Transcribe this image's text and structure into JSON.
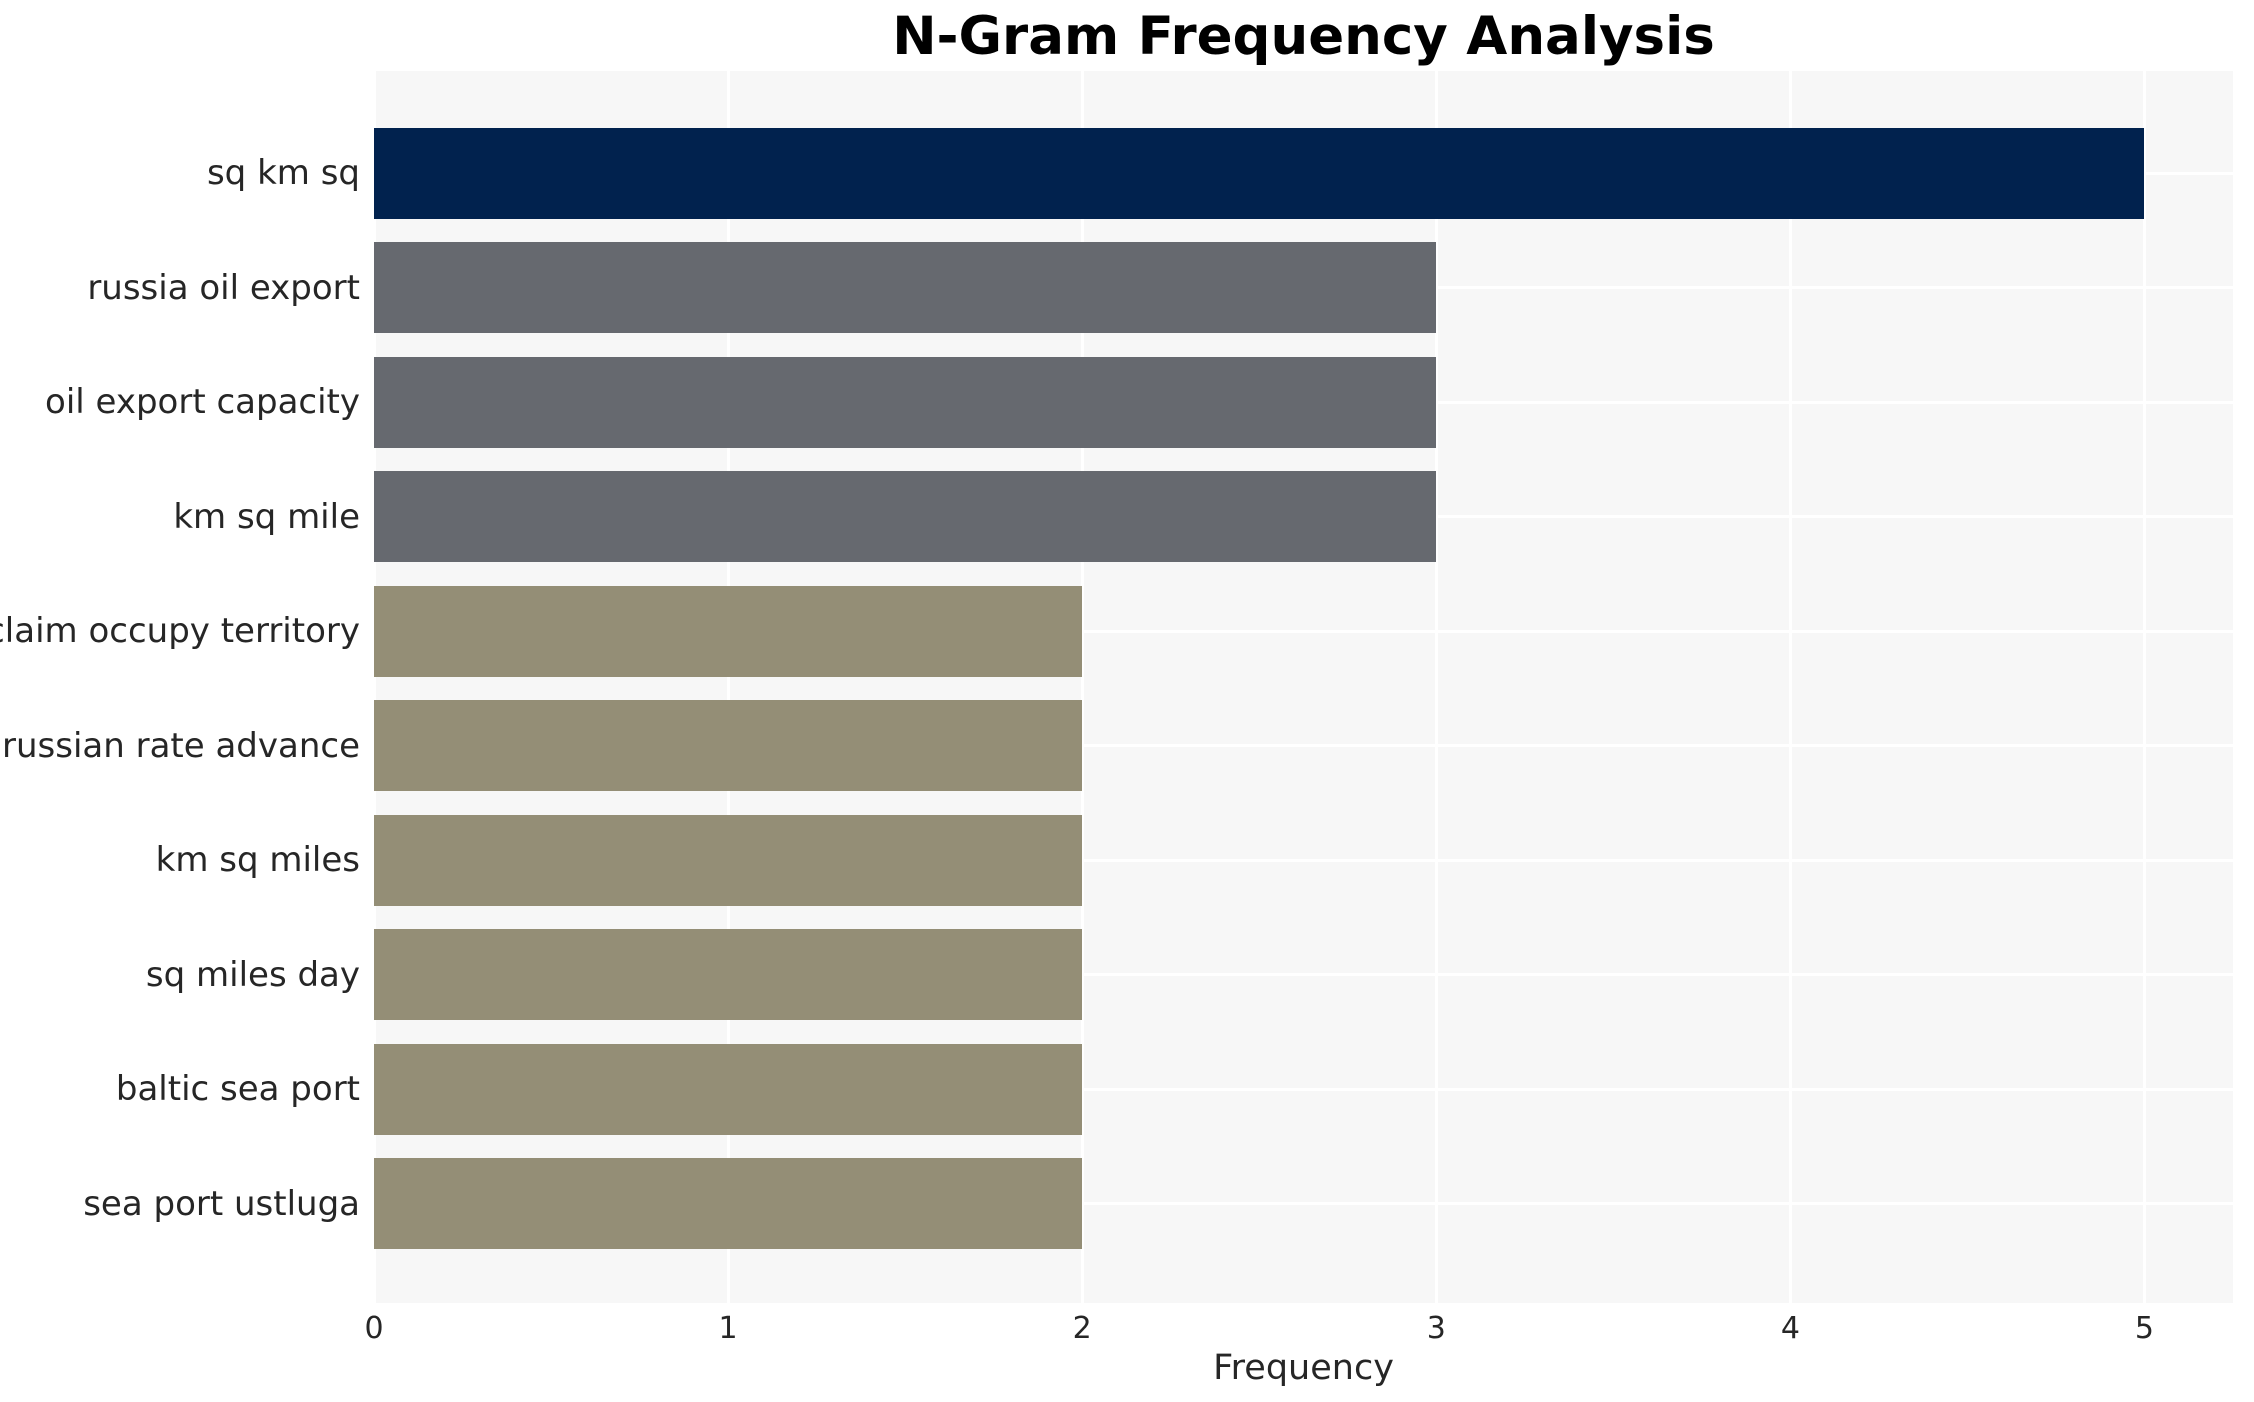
{
  "chart_data": {
    "type": "bar",
    "orientation": "horizontal",
    "title": "N-Gram Frequency Analysis",
    "xlabel": "Frequency",
    "ylabel": "",
    "categories": [
      "sq km sq",
      "russia oil export",
      "oil export capacity",
      "km sq mile",
      "reclaim occupy territory",
      "russian rate advance",
      "km sq miles",
      "sq miles day",
      "baltic sea port",
      "sea port ustluga"
    ],
    "values": [
      5,
      3,
      3,
      3,
      2,
      2,
      2,
      2,
      2,
      2
    ],
    "bar_colors": [
      "#01224e",
      "#66696f",
      "#66696f",
      "#66696f",
      "#948e76",
      "#948e76",
      "#948e76",
      "#948e76",
      "#948e76",
      "#948e76"
    ],
    "x_ticks": [
      "0",
      "1",
      "2",
      "3",
      "4",
      "5"
    ],
    "x_tick_values": [
      0,
      1,
      2,
      3,
      4,
      5
    ],
    "xlim": [
      0,
      5.25
    ],
    "grid": true,
    "legend_position": "none",
    "plot_background": "#f7f7f7",
    "grid_color": "#ffffff",
    "text_color": "#262626",
    "title_color": "#000000"
  }
}
